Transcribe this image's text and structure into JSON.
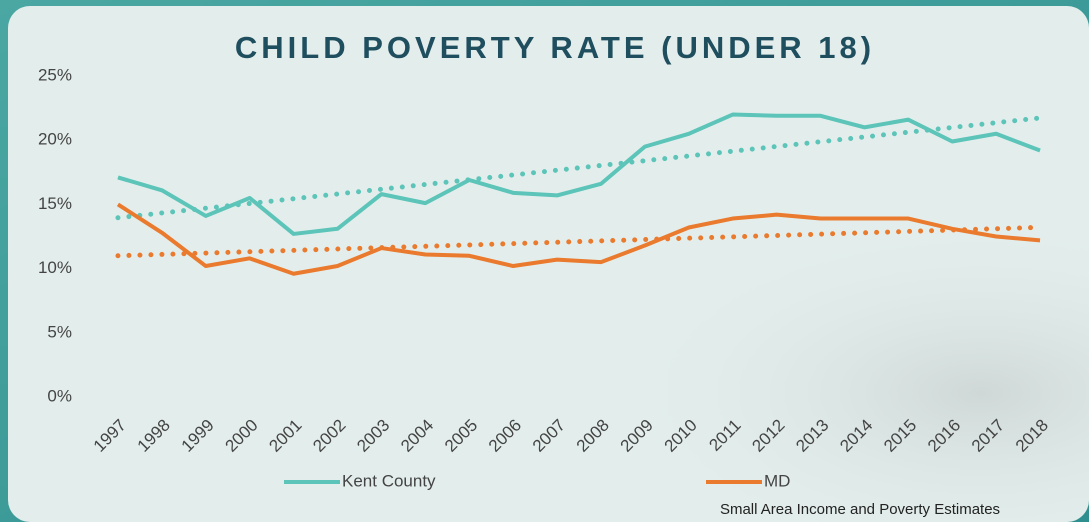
{
  "chart_data": {
    "type": "line",
    "title": "CHILD POVERTY RATE (UNDER 18)",
    "source": "Small Area Income and Poverty Estimates",
    "categories": [
      "1997",
      "1998",
      "1999",
      "2000",
      "2001",
      "2002",
      "2003",
      "2004",
      "2005",
      "2006",
      "2007",
      "2008",
      "2009",
      "2010",
      "2011",
      "2012",
      "2013",
      "2014",
      "2015",
      "2016",
      "2017",
      "2018"
    ],
    "series": [
      {
        "name": "Kent County",
        "color": "#5cc4b8",
        "values": [
          17.1,
          16.1,
          14.1,
          15.5,
          12.7,
          13.1,
          15.8,
          15.1,
          16.9,
          15.9,
          15.7,
          16.6,
          19.5,
          20.5,
          22.0,
          21.9,
          21.9,
          21.0,
          21.6,
          19.9,
          20.5,
          19.2
        ]
      },
      {
        "name": "MD",
        "color": "#ea7a2e",
        "values": [
          15.0,
          12.8,
          10.2,
          10.8,
          9.6,
          10.2,
          11.6,
          11.1,
          11.0,
          10.2,
          10.7,
          10.5,
          11.8,
          13.2,
          13.9,
          14.2,
          13.9,
          13.9,
          13.9,
          13.1,
          12.5,
          12.2
        ]
      }
    ],
    "ylim": [
      0,
      25
    ],
    "yticks": [
      {
        "value": 0,
        "label": "0%"
      },
      {
        "value": 5,
        "label": "5%"
      },
      {
        "value": 10,
        "label": "10%"
      },
      {
        "value": 15,
        "label": "15%"
      },
      {
        "value": 20,
        "label": "20%"
      },
      {
        "value": 25,
        "label": "25%"
      }
    ],
    "trendline": true,
    "grid": false
  }
}
